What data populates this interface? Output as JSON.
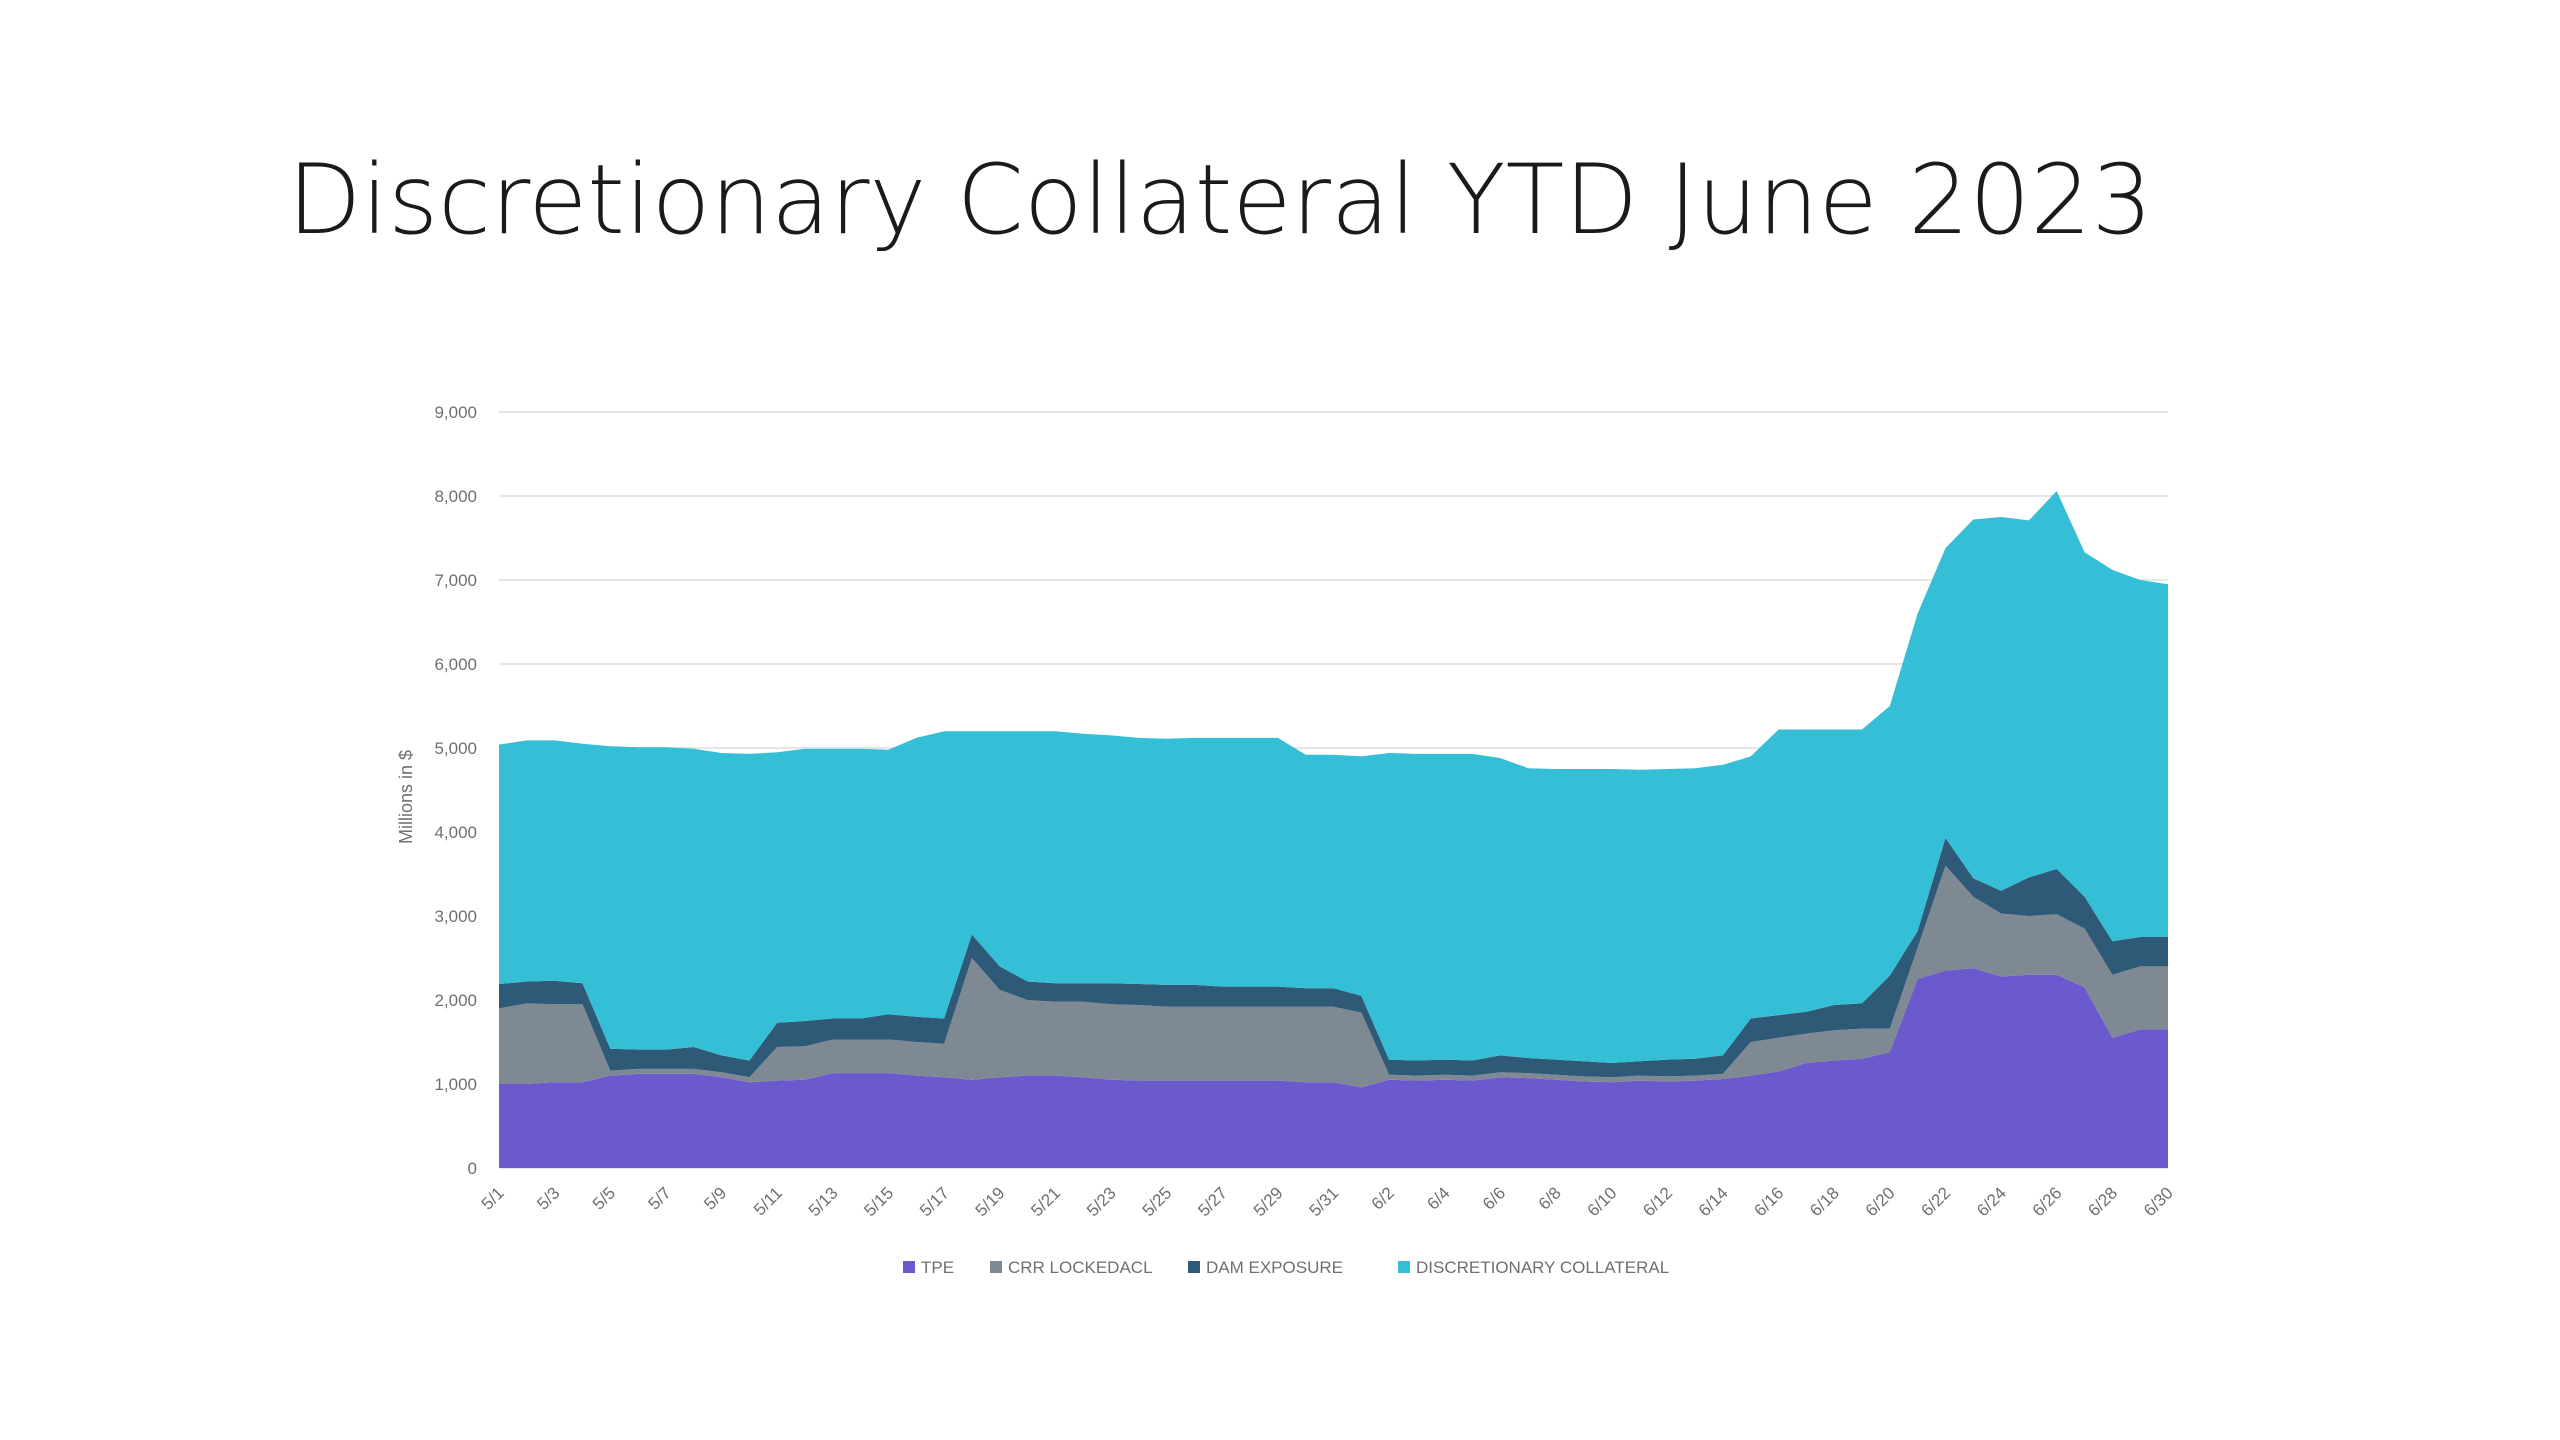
{
  "slide": {
    "title": "Discretionary Collateral YTD June 2023"
  },
  "colors": {
    "tpe": "#6a5acd",
    "crr": "#7f8993",
    "dam": "#2e5a78",
    "dc": "#34bfd6"
  },
  "chart_data": {
    "type": "area",
    "stacked": true,
    "title": "",
    "xlabel": "",
    "ylabel": "Millions in $",
    "ylim": [
      0,
      9000
    ],
    "yticks": [
      0,
      1000,
      2000,
      3000,
      4000,
      5000,
      6000,
      7000,
      8000,
      9000
    ],
    "ytick_labels": [
      "0",
      "1,000",
      "2,000",
      "3,000",
      "4,000",
      "5,000",
      "6,000",
      "7,000",
      "8,000",
      "9,000"
    ],
    "grid": true,
    "legend_position": "bottom",
    "x": [
      "5/1",
      "5/2",
      "5/3",
      "5/4",
      "5/5",
      "5/6",
      "5/7",
      "5/8",
      "5/9",
      "5/10",
      "5/11",
      "5/12",
      "5/13",
      "5/14",
      "5/15",
      "5/16",
      "5/17",
      "5/18",
      "5/19",
      "5/20",
      "5/21",
      "5/22",
      "5/23",
      "5/24",
      "5/25",
      "5/26",
      "5/27",
      "5/28",
      "5/29",
      "5/30",
      "5/31",
      "6/1",
      "6/2",
      "6/3",
      "6/4",
      "6/5",
      "6/6",
      "6/7",
      "6/8",
      "6/9",
      "6/10",
      "6/11",
      "6/12",
      "6/13",
      "6/14",
      "6/15",
      "6/16",
      "6/17",
      "6/18",
      "6/19",
      "6/20",
      "6/21",
      "6/22",
      "6/23",
      "6/24",
      "6/25",
      "6/26",
      "6/27",
      "6/28",
      "6/29",
      "6/30"
    ],
    "x_tick_labels": [
      "5/1",
      "5/3",
      "5/5",
      "5/7",
      "5/9",
      "5/11",
      "5/13",
      "5/15",
      "5/17",
      "5/19",
      "5/21",
      "5/23",
      "5/25",
      "5/27",
      "5/29",
      "5/31",
      "6/2",
      "6/4",
      "6/6",
      "6/8",
      "6/10",
      "6/12",
      "6/14",
      "6/16",
      "6/18",
      "6/20",
      "6/22",
      "6/24",
      "6/26",
      "6/28",
      "6/30"
    ],
    "series": [
      {
        "name": "TPE",
        "values": [
          1000,
          1000,
          1020,
          1020,
          1100,
          1120,
          1120,
          1120,
          1080,
          1020,
          1040,
          1050,
          1130,
          1130,
          1130,
          1100,
          1080,
          1050,
          1080,
          1100,
          1100,
          1080,
          1050,
          1040,
          1040,
          1040,
          1040,
          1040,
          1040,
          1020,
          1020,
          960,
          1050,
          1040,
          1050,
          1040,
          1080,
          1070,
          1050,
          1030,
          1020,
          1040,
          1030,
          1040,
          1060,
          1100,
          1150,
          1250,
          1280,
          1300,
          1380,
          2250,
          2350,
          2380,
          2280,
          2300,
          2300,
          2150,
          1550,
          1650,
          1650
        ]
      },
      {
        "name": "CRR LOCKEDACL",
        "values": [
          900,
          960,
          930,
          930,
          60,
          60,
          60,
          60,
          60,
          60,
          400,
          400,
          400,
          400,
          400,
          400,
          400,
          1450,
          1040,
          900,
          880,
          900,
          900,
          900,
          880,
          880,
          880,
          880,
          880,
          900,
          900,
          890,
          60,
          60,
          60,
          60,
          60,
          60,
          60,
          60,
          60,
          60,
          60,
          60,
          60,
          400,
          400,
          350,
          360,
          360,
          280,
          370,
          1250,
          850,
          750,
          700,
          720,
          700,
          750,
          750,
          750
        ]
      },
      {
        "name": "DAM EXPOSURE",
        "values": [
          290,
          260,
          280,
          250,
          260,
          230,
          230,
          260,
          200,
          200,
          290,
          300,
          250,
          250,
          300,
          300,
          300,
          280,
          280,
          220,
          220,
          220,
          250,
          250,
          260,
          260,
          240,
          240,
          240,
          220,
          220,
          200,
          180,
          180,
          180,
          180,
          200,
          180,
          180,
          180,
          170,
          170,
          200,
          200,
          220,
          280,
          270,
          260,
          300,
          300,
          630,
          200,
          330,
          220,
          270,
          460,
          540,
          380,
          400,
          350,
          350
        ]
      },
      {
        "name": "DISCRETIONARY COLLATERAL",
        "values": [
          2850,
          2870,
          2860,
          2850,
          3600,
          3600,
          3600,
          3550,
          3600,
          3650,
          3220,
          3240,
          3210,
          3210,
          3150,
          3320,
          3420,
          2420,
          2800,
          2980,
          3000,
          2970,
          2950,
          2930,
          2930,
          2940,
          2960,
          2960,
          2960,
          2780,
          2780,
          2850,
          3650,
          3650,
          3640,
          3650,
          3540,
          3450,
          3460,
          3480,
          3500,
          3470,
          3460,
          3460,
          3460,
          3120,
          3400,
          3360,
          3280,
          3260,
          3210,
          3780,
          3450,
          4270,
          4450,
          4250,
          4500,
          4100,
          4420,
          4250,
          4200
        ]
      }
    ]
  }
}
